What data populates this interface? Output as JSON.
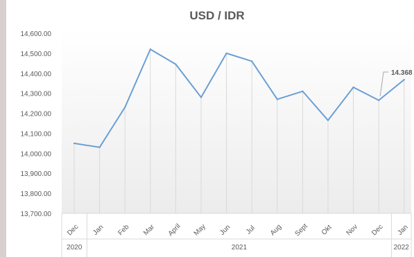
{
  "chart_data": {
    "type": "line",
    "title": "USD / IDR",
    "categories": [
      "Dec",
      "Jan",
      "Feb",
      "Mar",
      "April",
      "May",
      "Jun",
      "Jul",
      "Aug",
      "Sept",
      "Okt",
      "Nov",
      "Dec",
      "Jan"
    ],
    "year_groups": [
      {
        "label": "2020",
        "start": 0,
        "end": 0
      },
      {
        "label": "2021",
        "start": 1,
        "end": 12
      },
      {
        "label": "2022",
        "start": 13,
        "end": 13
      }
    ],
    "series": [
      {
        "values": [
          14050,
          14030,
          14230,
          14520,
          14445,
          14280,
          14500,
          14460,
          14270,
          14310,
          14165,
          14330,
          14265,
          14368
        ]
      }
    ],
    "ylim": [
      13700,
      14600
    ],
    "yticks": [
      "14,600.00",
      "14,500.00",
      "14,400.00",
      "14,300.00",
      "14,200.00",
      "14,100.00",
      "14,000.00",
      "13,900.00",
      "13,800.00",
      "13,700.00"
    ],
    "annotation": {
      "index": 13,
      "text": "14.368"
    },
    "grid": "vertical",
    "colors": {
      "line": "#6a9fd4",
      "title": "#595959",
      "axis_text": "#595959",
      "grid": "#d9d9d9"
    }
  }
}
